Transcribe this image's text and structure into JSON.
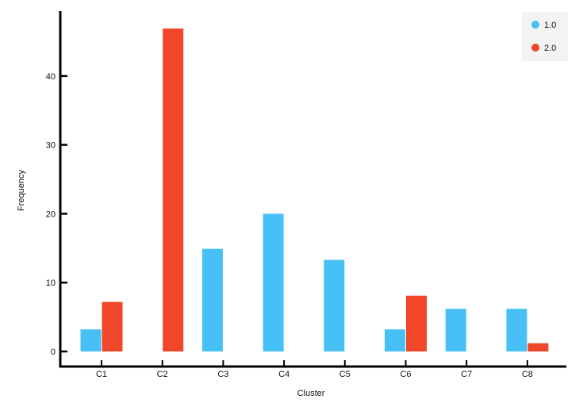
{
  "chart_data": {
    "type": "bar",
    "xlabel": "Cluster",
    "ylabel": "Frequency",
    "categories": [
      "C1",
      "C2",
      "C3",
      "C4",
      "C5",
      "C6",
      "C7",
      "C8"
    ],
    "series": [
      {
        "name": "1.0",
        "color": "#47c0f5",
        "values": [
          3.2,
          0,
          14.9,
          20.0,
          13.3,
          3.2,
          6.2,
          6.2
        ]
      },
      {
        "name": "2.0",
        "color": "#f0472a",
        "values": [
          7.2,
          46.9,
          0,
          0,
          0,
          8.1,
          0,
          1.2
        ]
      }
    ],
    "yticks": [
      0,
      10,
      20,
      30,
      40
    ],
    "ylim": [
      -2,
      49.5
    ],
    "grid": false,
    "legend": {
      "position": "top-right",
      "background": "#f3f3f3"
    }
  }
}
